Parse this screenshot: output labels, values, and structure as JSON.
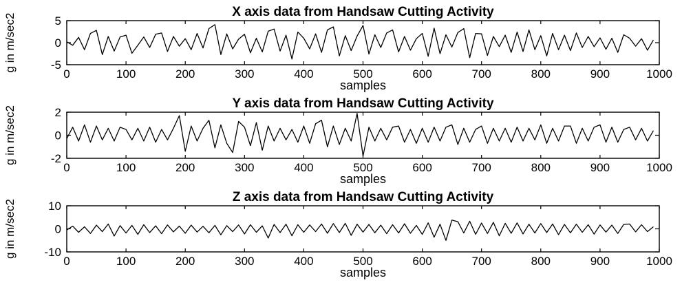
{
  "chart_data": [
    {
      "type": "line",
      "title": "X axis data from Handsaw Cutting Activity",
      "xlabel": "samples",
      "ylabel": "g in m/sec2",
      "xlim": [
        0,
        1000
      ],
      "ylim": [
        -5,
        5
      ],
      "xticks": [
        "0",
        "100",
        "200",
        "300",
        "400",
        "500",
        "600",
        "700",
        "800",
        "900",
        "1000"
      ],
      "yticks": [
        "-5",
        "0",
        "5"
      ],
      "grid": false,
      "line_color": "#000000",
      "series": [
        {
          "x_start": 0,
          "x_step": 10,
          "values": [
            0.2,
            -0.6,
            1.2,
            -1.6,
            2.1,
            2.8,
            -2.7,
            1.4,
            -1.9,
            1.3,
            1.7,
            -2.4,
            -0.6,
            1.3,
            -1.1,
            1.9,
            2.2,
            -2.0,
            1.4,
            -0.8,
            0.9,
            -1.6,
            2.1,
            -1.2,
            3.2,
            4.1,
            -2.7,
            2.0,
            -1.4,
            0.8,
            1.9,
            -2.3,
            1.0,
            -2.1,
            2.6,
            3.1,
            -1.9,
            1.7,
            -3.7,
            2.4,
            1.0,
            -1.4,
            2.0,
            -2.2,
            2.9,
            3.6,
            -3.0,
            1.6,
            -1.8,
            1.5,
            3.9,
            -2.6,
            1.8,
            -1.1,
            2.2,
            2.9,
            -2.1,
            1.4,
            -1.7,
            0.9,
            2.1,
            -3.1,
            3.3,
            -2.5,
            1.8,
            -1.0,
            2.3,
            3.2,
            -3.4,
            2.1,
            2.0,
            -2.9,
            1.4,
            -0.9,
            1.7,
            -2.2,
            2.4,
            -2.0,
            2.9,
            -1.6,
            1.6,
            -3.0,
            2.1,
            -1.6,
            1.7,
            -1.8,
            2.2,
            -1.1,
            1.4,
            -0.9,
            1.1,
            -1.5,
            1.0,
            -2.2,
            1.8,
            1.0,
            -0.8,
            0.9,
            -1.7,
            0.6
          ]
        }
      ]
    },
    {
      "type": "line",
      "title": "Y axis data from Handsaw Cutting Activity",
      "xlabel": "samples",
      "ylabel": "g in m/sec2",
      "xlim": [
        0,
        1000
      ],
      "ylim": [
        -2,
        2
      ],
      "xticks": [
        "0",
        "100",
        "200",
        "300",
        "400",
        "500",
        "600",
        "700",
        "800",
        "900",
        "1000"
      ],
      "yticks": [
        "-2",
        "0",
        "2"
      ],
      "grid": false,
      "line_color": "#000000",
      "series": [
        {
          "x_start": 0,
          "x_step": 10,
          "values": [
            -0.3,
            0.7,
            -0.5,
            0.9,
            -0.6,
            0.8,
            -0.4,
            0.6,
            -0.5,
            0.7,
            0.5,
            -0.4,
            0.6,
            -0.5,
            0.7,
            -0.6,
            0.5,
            -0.4,
            0.6,
            1.7,
            -1.4,
            0.8,
            -0.5,
            0.6,
            1.3,
            -1.1,
            0.9,
            -0.7,
            -1.5,
            1.2,
            0.7,
            -0.9,
            1.1,
            -1.3,
            0.8,
            -0.5,
            0.6,
            -0.4,
            0.5,
            -0.6,
            0.8,
            -0.7,
            1.0,
            1.3,
            -1.0,
            0.8,
            -0.8,
            0.6,
            -0.5,
            1.9,
            -1.8,
            0.7,
            -0.5,
            0.6,
            -0.4,
            0.7,
            0.8,
            -0.6,
            0.5,
            -0.7,
            0.6,
            -0.6,
            0.7,
            -0.5,
            0.7,
            0.9,
            -0.8,
            0.6,
            -0.6,
            0.5,
            0.8,
            -0.7,
            0.6,
            -0.5,
            0.6,
            -0.6,
            0.7,
            -0.5,
            0.6,
            -0.4,
            0.9,
            -0.7,
            0.6,
            -0.5,
            0.8,
            0.8,
            -0.7,
            0.6,
            -0.5,
            0.7,
            0.9,
            -0.6,
            0.7,
            -0.6,
            0.5,
            0.7,
            -0.4,
            0.6,
            -0.5,
            0.4
          ]
        }
      ]
    },
    {
      "type": "line",
      "title": "Z axis data from Handsaw Cutting Activity",
      "xlabel": "samples",
      "ylabel": "g in m/sec2",
      "xlim": [
        0,
        1000
      ],
      "ylim": [
        -10,
        10
      ],
      "xticks": [
        "0",
        "100",
        "200",
        "300",
        "400",
        "500",
        "600",
        "700",
        "800",
        "900",
        "1000"
      ],
      "yticks": [
        "-10",
        "0",
        "10"
      ],
      "grid": false,
      "line_color": "#000000",
      "series": [
        {
          "x_start": 0,
          "x_step": 10,
          "values": [
            -0.5,
            1.2,
            -1.5,
            0.9,
            -2.0,
            1.6,
            -1.2,
            2.1,
            -3.1,
            1.4,
            -1.8,
            1.5,
            -2.4,
            1.8,
            -1.6,
            1.3,
            -2.1,
            1.7,
            -1.3,
            1.2,
            -1.9,
            1.6,
            -1.4,
            1.1,
            -1.7,
            1.5,
            -2.6,
            1.4,
            -1.2,
            1.7,
            -2.2,
            1.8,
            -1.5,
            1.3,
            -4.0,
            1.9,
            -1.6,
            2.0,
            -3.0,
            1.8,
            -1.5,
            1.7,
            -1.2,
            2.1,
            -1.9,
            2.3,
            -1.6,
            2.4,
            -2.8,
            2.0,
            -1.4,
            1.9,
            -1.7,
            1.6,
            -2.1,
            1.8,
            -1.8,
            2.2,
            -1.9,
            1.5,
            -2.4,
            2.6,
            -3.6,
            2.0,
            -5.0,
            3.8,
            3.1,
            -1.8,
            3.3,
            -2.4,
            2.5,
            -2.0,
            2.8,
            -3.0,
            2.4,
            -1.9,
            2.6,
            -2.2,
            2.0,
            -1.8,
            2.3,
            -1.6,
            2.1,
            -2.5,
            1.9,
            -1.7,
            2.0,
            -1.5,
            1.8,
            -2.3,
            1.7,
            -1.4,
            1.6,
            -2.0,
            1.9,
            2.1,
            -1.3,
            1.8,
            -1.2,
            0.9
          ]
        }
      ]
    }
  ]
}
